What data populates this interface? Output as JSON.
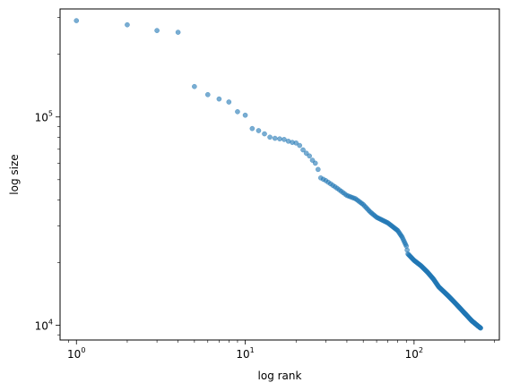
{
  "chart_data": {
    "type": "scatter",
    "title": "",
    "xlabel": "log rank",
    "ylabel": "log size",
    "xscale": "log",
    "yscale": "log",
    "xlim": [
      0.8,
      320
    ],
    "ylim": [
      8500,
      330000
    ],
    "grid": false,
    "marker_color": "#1f77b4",
    "marker_alpha": 0.6,
    "x_ticks": [
      {
        "value": 1,
        "base": "10",
        "exp": "0"
      },
      {
        "value": 10,
        "base": "10",
        "exp": "1"
      },
      {
        "value": 100,
        "base": "10",
        "exp": "2"
      }
    ],
    "y_ticks": [
      {
        "value": 10000,
        "base": "10",
        "exp": "4"
      },
      {
        "value": 100000,
        "base": "10",
        "exp": "5"
      }
    ],
    "anchors": [
      [
        1,
        290000
      ],
      [
        2,
        277000
      ],
      [
        3,
        260000
      ],
      [
        4,
        255000
      ],
      [
        5,
        140000
      ],
      [
        6,
        128000
      ],
      [
        7,
        122000
      ],
      [
        8,
        118000
      ],
      [
        9,
        106000
      ],
      [
        10,
        102000
      ],
      [
        11,
        88000
      ],
      [
        12,
        86000
      ],
      [
        13,
        83000
      ],
      [
        14,
        80000
      ],
      [
        15,
        79000
      ],
      [
        16,
        78500
      ],
      [
        17,
        78000
      ],
      [
        18,
        76500
      ],
      [
        19,
        75500
      ],
      [
        20,
        75000
      ],
      [
        21,
        73000
      ],
      [
        22,
        69500
      ],
      [
        23,
        67000
      ],
      [
        24,
        65000
      ],
      [
        25,
        62000
      ],
      [
        26,
        60000
      ],
      [
        27,
        56000
      ],
      [
        28,
        51000
      ],
      [
        30,
        49500
      ],
      [
        35,
        45500
      ],
      [
        40,
        42000
      ],
      [
        45,
        40500
      ],
      [
        50,
        38000
      ],
      [
        55,
        35000
      ],
      [
        60,
        33000
      ],
      [
        70,
        31000
      ],
      [
        80,
        28500
      ],
      [
        85,
        26500
      ],
      [
        90,
        24000
      ],
      [
        92,
        22000
      ],
      [
        100,
        20500
      ],
      [
        110,
        19300
      ],
      [
        120,
        18000
      ],
      [
        130,
        16700
      ],
      [
        140,
        15300
      ],
      [
        160,
        13800
      ],
      [
        180,
        12500
      ],
      [
        200,
        11400
      ],
      [
        220,
        10500
      ],
      [
        240,
        9900
      ],
      [
        248,
        9700
      ]
    ]
  }
}
